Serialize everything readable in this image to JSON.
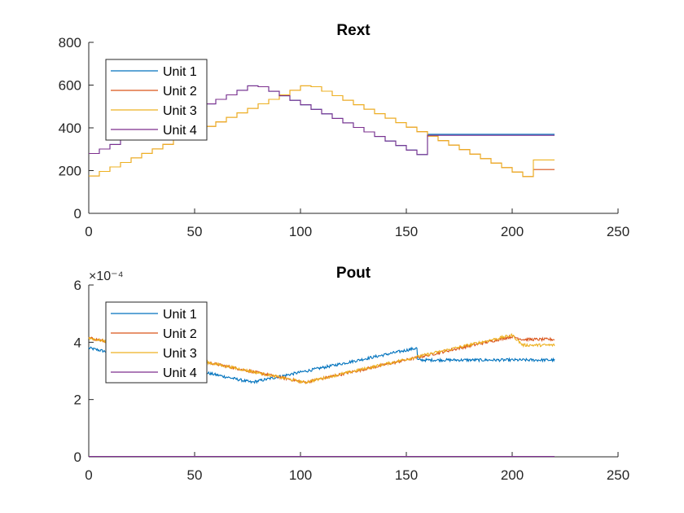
{
  "chart_data": [
    {
      "type": "line",
      "title": "Rext",
      "xlabel": "",
      "ylabel": "",
      "xlim": [
        0,
        250
      ],
      "ylim": [
        0,
        800
      ],
      "xticks": [
        0,
        50,
        100,
        150,
        200,
        250
      ],
      "yticks": [
        0,
        200,
        400,
        600,
        800
      ],
      "xtick_labels": [
        "0",
        "50",
        "100",
        "150",
        "200",
        "250"
      ],
      "ytick_labels": [
        "0",
        "200",
        "400",
        "600",
        "800"
      ],
      "legend": {
        "placement": "top-left",
        "entries": [
          "Unit 1",
          "Unit 2",
          "Unit 3",
          "Unit 4"
        ]
      },
      "series": [
        {
          "name": "Unit 1",
          "color": "#0072BD",
          "style": "step",
          "points": [
            [
              0,
              280
            ],
            [
              77,
              605
            ],
            [
              155,
              275
            ],
            [
              155,
              370
            ],
            [
              220,
              370
            ]
          ]
        },
        {
          "name": "Unit 2",
          "color": "#D95319",
          "style": "step",
          "points": [
            [
              0,
              175
            ],
            [
              102,
              605
            ],
            [
              205,
              172
            ],
            [
              205,
              205
            ],
            [
              220,
              205
            ]
          ]
        },
        {
          "name": "Unit 3",
          "color": "#EDB120",
          "style": "step",
          "points": [
            [
              0,
              175
            ],
            [
              102,
              605
            ],
            [
              205,
              172
            ],
            [
              205,
              250
            ],
            [
              220,
              250
            ]
          ]
        },
        {
          "name": "Unit 4",
          "color": "#7E2F8E",
          "style": "step",
          "points": [
            [
              0,
              280
            ],
            [
              77,
              605
            ],
            [
              155,
              275
            ],
            [
              155,
              365
            ],
            [
              220,
              365
            ]
          ]
        }
      ]
    },
    {
      "type": "line",
      "title": "Pout",
      "xlabel": "",
      "ylabel": "",
      "y_exponent": "×10⁻⁴",
      "xlim": [
        0,
        250
      ],
      "ylim": [
        0,
        6
      ],
      "xticks": [
        0,
        50,
        100,
        150,
        200,
        250
      ],
      "yticks": [
        0,
        2,
        4,
        6
      ],
      "xtick_labels": [
        "0",
        "50",
        "100",
        "150",
        "200",
        "250"
      ],
      "ytick_labels": [
        "0",
        "2",
        "4",
        "6"
      ],
      "legend": {
        "placement": "top-left",
        "entries": [
          "Unit 1",
          "Unit 2",
          "Unit 3",
          "Unit 4"
        ]
      },
      "series": [
        {
          "name": "Unit 1",
          "color": "#0072BD",
          "style": "noisy",
          "points": [
            [
              0,
              3.8
            ],
            [
              77,
              2.6
            ],
            [
              155,
              3.8
            ],
            [
              155,
              3.38
            ],
            [
              220,
              3.38
            ]
          ]
        },
        {
          "name": "Unit 2",
          "color": "#D95319",
          "style": "noisy",
          "points": [
            [
              0,
              4.15
            ],
            [
              102,
              2.6
            ],
            [
              200,
              4.2
            ],
            [
              205,
              4.1
            ],
            [
              220,
              4.1
            ]
          ]
        },
        {
          "name": "Unit 3",
          "color": "#EDB120",
          "style": "noisy",
          "points": [
            [
              0,
              4.15
            ],
            [
              102,
              2.6
            ],
            [
              200,
              4.25
            ],
            [
              205,
              3.9
            ],
            [
              220,
              3.9
            ]
          ]
        },
        {
          "name": "Unit 4",
          "color": "#7E2F8E",
          "style": "line",
          "points": [
            [
              0,
              0.01
            ],
            [
              220,
              0.01
            ]
          ]
        }
      ]
    }
  ]
}
